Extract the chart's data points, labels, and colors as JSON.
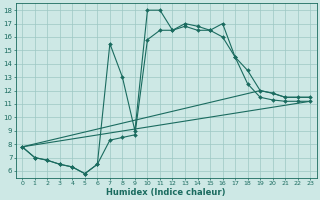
{
  "xlabel": "Humidex (Indice chaleur)",
  "bg_color": "#cde8e5",
  "grid_color": "#9dc8c3",
  "line_color": "#1a6b5f",
  "xlim": [
    -0.5,
    23.5
  ],
  "ylim": [
    5.5,
    18.5
  ],
  "xticks": [
    0,
    1,
    2,
    3,
    4,
    5,
    6,
    7,
    8,
    9,
    10,
    11,
    12,
    13,
    14,
    15,
    16,
    17,
    18,
    19,
    20,
    21,
    22,
    23
  ],
  "yticks": [
    6,
    7,
    8,
    9,
    10,
    11,
    12,
    13,
    14,
    15,
    16,
    17,
    18
  ],
  "series": [
    {
      "x": [
        0,
        1,
        2,
        3,
        4,
        5,
        6,
        7,
        8,
        9,
        10,
        11,
        12,
        13,
        14,
        15,
        16,
        17,
        18,
        19,
        20,
        21,
        22,
        23
      ],
      "y": [
        7.8,
        7.0,
        6.8,
        6.5,
        6.3,
        5.8,
        6.5,
        15.5,
        13.0,
        9.0,
        18.0,
        18.0,
        16.5,
        17.0,
        16.8,
        16.5,
        17.0,
        14.5,
        13.5,
        12.0,
        11.8,
        11.5,
        11.5,
        11.5
      ],
      "marker": true
    },
    {
      "x": [
        0,
        1,
        2,
        3,
        4,
        5,
        6,
        7,
        8,
        9,
        10,
        11,
        12,
        13,
        14,
        15,
        16,
        17,
        18,
        19,
        20,
        21,
        22,
        23
      ],
      "y": [
        7.8,
        7.0,
        6.8,
        6.5,
        6.3,
        5.8,
        6.5,
        8.3,
        8.5,
        8.7,
        15.8,
        16.5,
        16.5,
        16.8,
        16.5,
        16.5,
        16.0,
        14.5,
        12.5,
        11.5,
        11.3,
        11.2,
        11.2,
        11.2
      ],
      "marker": true
    },
    {
      "x": [
        0,
        19,
        20,
        21,
        22,
        23
      ],
      "y": [
        7.8,
        12.0,
        11.8,
        11.5,
        11.5,
        11.5
      ],
      "marker": false
    },
    {
      "x": [
        0,
        23
      ],
      "y": [
        7.8,
        11.2
      ],
      "marker": false
    }
  ]
}
